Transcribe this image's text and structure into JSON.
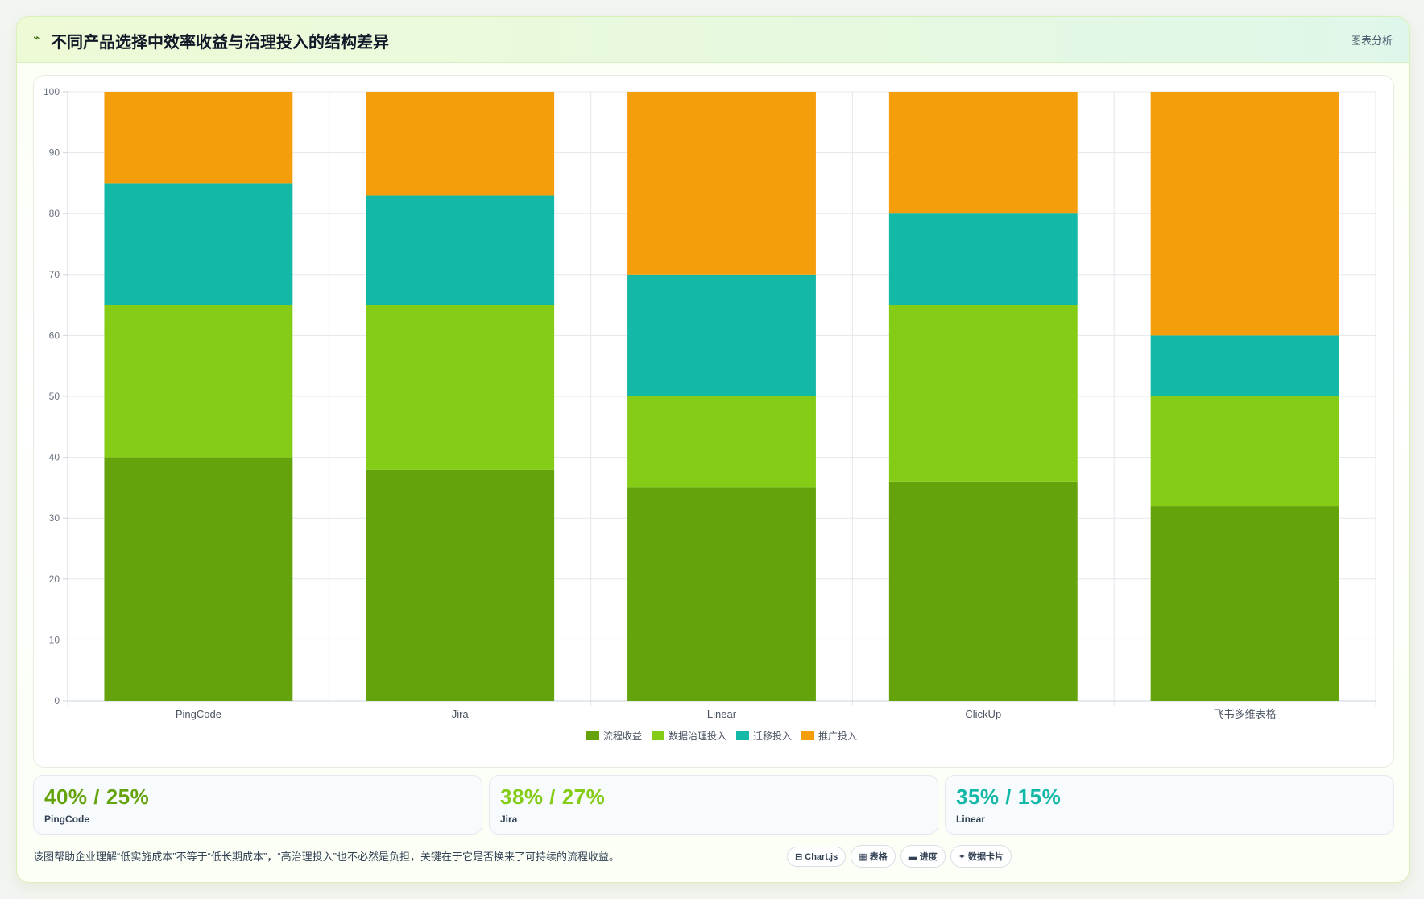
{
  "header": {
    "icon": "pulse-icon",
    "title": "不同产品选择中效率收益与治理投入的结构差异",
    "tag": "图表分析"
  },
  "chart_data": {
    "type": "bar",
    "stacked": true,
    "categories": [
      "PingCode",
      "Jira",
      "Linear",
      "ClickUp",
      "飞书多维表格"
    ],
    "series": [
      {
        "name": "流程收益",
        "color": "#65a30d",
        "values": [
          40,
          38,
          35,
          36,
          32
        ]
      },
      {
        "name": "数据治理投入",
        "color": "#84cc16",
        "values": [
          25,
          27,
          15,
          29,
          18
        ]
      },
      {
        "name": "迁移投入",
        "color": "#14b8a6",
        "values": [
          20,
          18,
          20,
          15,
          10
        ]
      },
      {
        "name": "推广投入",
        "color": "#f59e0b",
        "values": [
          15,
          17,
          30,
          20,
          40
        ]
      }
    ],
    "ylim": [
      0,
      100
    ],
    "yticks": [
      0,
      10,
      20,
      30,
      40,
      50,
      60,
      70,
      80,
      90,
      100
    ],
    "grid": true,
    "legend": "bottom"
  },
  "stats": [
    {
      "value": "40% / 25%",
      "label": "PingCode",
      "color": "#65a30d"
    },
    {
      "value": "38% / 27%",
      "label": "Jira",
      "color": "#84cc16"
    },
    {
      "value": "35% / 15%",
      "label": "Linear",
      "color": "#14b8a6"
    }
  ],
  "footer": {
    "note": "该图帮助企业理解“低实施成本”不等于“低长期成本”，“高治理投入”也不必然是负担，关键在于它是否换来了可持续的流程收益。",
    "pills": [
      "⊟ Chart.js",
      "▦ 表格",
      "▬ 进度",
      "✦ 数据卡片"
    ]
  }
}
